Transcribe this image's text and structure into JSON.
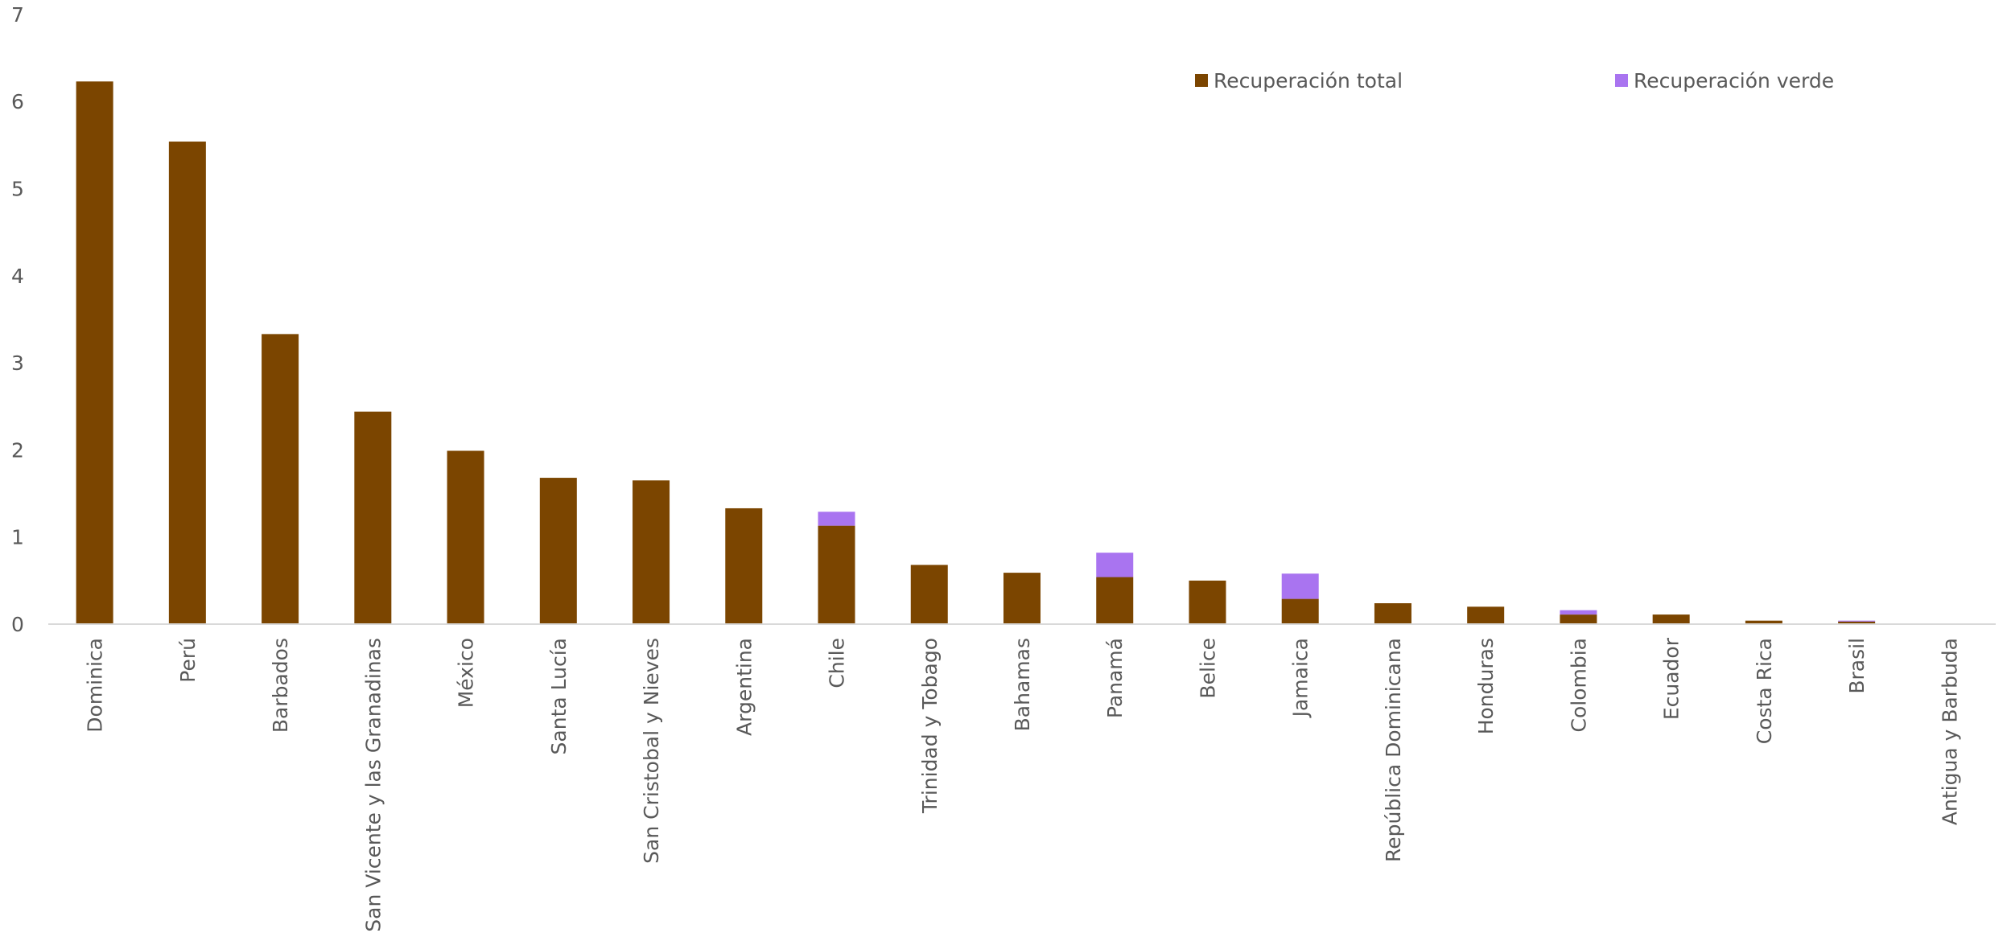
{
  "chart_data": {
    "type": "bar",
    "stacked": true,
    "title": "",
    "xlabel": "",
    "ylabel": "",
    "ylim": [
      0,
      7
    ],
    "yticks": [
      0,
      1,
      2,
      3,
      4,
      5,
      6,
      7
    ],
    "grid": false,
    "legend_position": "top-right",
    "categories": [
      "Dominica",
      "Perú",
      "Barbados",
      "San Vicente y las Granadinas",
      "México",
      "Santa Lucía",
      "San Cristobal y Nieves",
      "Argentina",
      "Chile",
      "Trinidad y Tobago",
      "Bahamas",
      "Panamá",
      "Belice",
      "Jamaica",
      "República Dominicana",
      "Honduras",
      "Colombia",
      "Ecuador",
      "Costa Rica",
      "Brasil",
      "Antigua y Barbuda"
    ],
    "series": [
      {
        "name": "Recuperación total",
        "color": "#7b4500",
        "values": [
          6.23,
          5.54,
          3.33,
          2.44,
          1.99,
          1.68,
          1.65,
          1.33,
          1.13,
          0.68,
          0.59,
          0.54,
          0.5,
          0.29,
          0.24,
          0.2,
          0.11,
          0.11,
          0.04,
          0.03,
          0.0
        ]
      },
      {
        "name": "Recuperación verde",
        "color": "#a974f0",
        "values": [
          0,
          0,
          0,
          0,
          0,
          0,
          0,
          0,
          0.16,
          0,
          0,
          0.28,
          0,
          0.29,
          0,
          0,
          0.05,
          0,
          0,
          0.01,
          0
        ]
      }
    ]
  }
}
